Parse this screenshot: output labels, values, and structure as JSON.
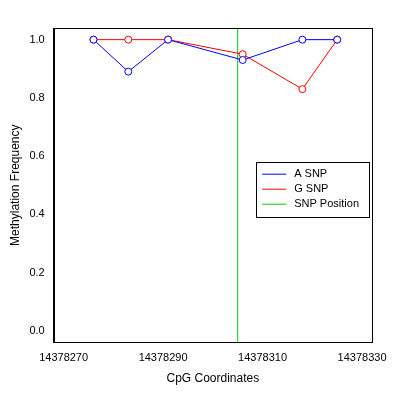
{
  "chart_data": {
    "type": "line",
    "x_label": "CpG Coordinates",
    "y_label": "Methylation Frequency",
    "x": [
      14378276,
      14378283,
      14378291,
      14378306,
      14378318,
      14378325
    ],
    "series": [
      {
        "name": "A SNP",
        "color": "#0000ff",
        "marker": "circle_open",
        "line_style": "solid",
        "values": [
          1.0,
          0.89,
          1.0,
          0.93,
          1.0,
          1.0
        ]
      },
      {
        "name": "G SNP",
        "color": "#ff0000",
        "marker": "circle_open",
        "line_style": "solid",
        "values": [
          1.0,
          1.0,
          1.0,
          0.95,
          0.83,
          1.0
        ]
      }
    ],
    "vlines": [
      {
        "name": "SNP Position",
        "x": 14378305,
        "color": "#00cc00"
      }
    ],
    "xlim": [
      14378268,
      14378332
    ],
    "ylim": [
      -0.04,
      1.04
    ],
    "xticks": [
      14378270,
      14378290,
      14378310,
      14378330
    ],
    "yticks": [
      {
        "value": 0,
        "label": "0.0"
      },
      {
        "value": 0.2,
        "label": "0.2"
      },
      {
        "value": 0.4,
        "label": "0.4"
      },
      {
        "value": 0.6,
        "label": "0.6"
      },
      {
        "value": 0.8,
        "label": "0.8"
      },
      {
        "value": 1,
        "label": "1.0"
      }
    ],
    "grid": false,
    "legend": "right"
  }
}
